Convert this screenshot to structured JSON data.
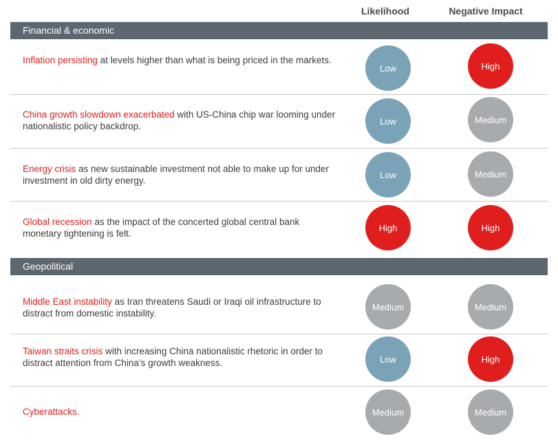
{
  "headers": {
    "likelihood": "Likelihood",
    "impact": "Negative Impact"
  },
  "sections": [
    {
      "title": "Financial & economic"
    },
    {
      "title": "Geopolitical"
    }
  ],
  "rows": [
    {
      "highlight": "Inflation persisting",
      "text": " at levels higher than what is being priced in the markets.",
      "likelihood": "Low",
      "impact": "High"
    },
    {
      "highlight": "China growth slowdown exacerbated",
      "text": " with US-China chip war looming under nationalistic policy backdrop.",
      "likelihood": "Low",
      "impact": "Medium"
    },
    {
      "highlight": "Energy crisis",
      "text": " as new sustainable investment not able to make up for under investment in old dirty energy.",
      "likelihood": "Low",
      "impact": "Medium"
    },
    {
      "highlight": "Global recession",
      "text": " as the impact of the concerted global central bank monetary tightening is felt.",
      "likelihood": "High",
      "impact": "High"
    },
    {
      "highlight": "Middle East instability",
      "text": " as Iran threatens Saudi or Iraqi oil infrastructure to distract from domestic instability.",
      "likelihood": "Medium",
      "impact": "Medium"
    },
    {
      "highlight": "Taiwan straits crisis",
      "text": " with increasing China nationalistic rhetoric in order to distract attention from China’s growth weakness.",
      "likelihood": "Low",
      "impact": "High"
    },
    {
      "highlight": "Cyberattacks.",
      "text": "",
      "likelihood": "Medium",
      "impact": "Medium"
    }
  ]
}
